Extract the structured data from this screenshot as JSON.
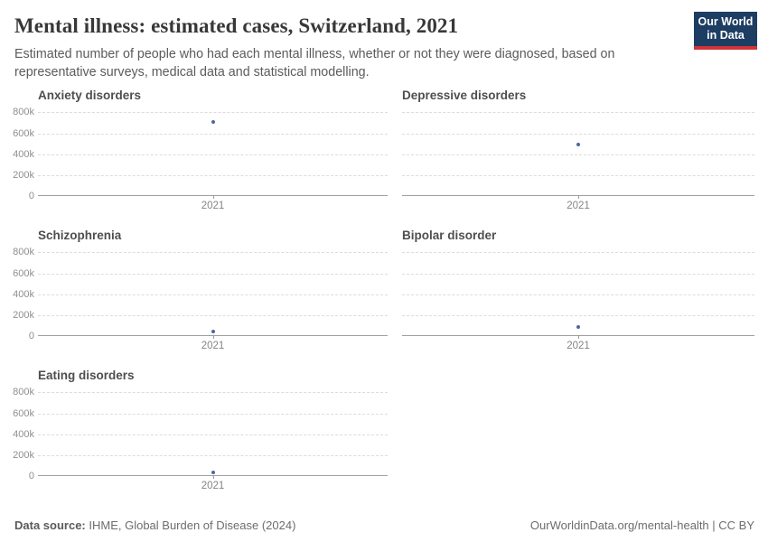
{
  "header": {
    "title": "Mental illness: estimated cases, Switzerland, 2021",
    "subtitle": "Estimated number of people who had each mental illness, whether or not they were diagnosed, based on representative surveys, medical data and statistical modelling.",
    "logo": {
      "line1": "Our World",
      "line2": "in Data",
      "bg_color": "#1d3d63",
      "accent_color": "#d13438"
    }
  },
  "chart_data": {
    "type": "scatter",
    "entity": "Switzerland",
    "year": 2021,
    "x_tick_label": "2021",
    "ylim": [
      0,
      800000
    ],
    "grid": true,
    "point_color": "#4c6a9c",
    "yticks": [
      {
        "value": 800000,
        "label": "800k"
      },
      {
        "value": 600000,
        "label": "600k"
      },
      {
        "value": 400000,
        "label": "400k"
      },
      {
        "value": 200000,
        "label": "200k"
      },
      {
        "value": 0,
        "label": "0"
      }
    ],
    "panels": [
      {
        "title": "Anxiety disorders",
        "year": 2021,
        "value": 700000,
        "show_y_axis": true
      },
      {
        "title": "Depressive disorders",
        "year": 2021,
        "value": 485000,
        "show_y_axis": false
      },
      {
        "title": "Schizophrenia",
        "year": 2021,
        "value": 35000,
        "show_y_axis": true
      },
      {
        "title": "Bipolar disorder",
        "year": 2021,
        "value": 85000,
        "show_y_axis": false
      },
      {
        "title": "Eating disorders",
        "year": 2021,
        "value": 33000,
        "show_y_axis": true
      }
    ]
  },
  "footer": {
    "source_label": "Data source:",
    "source_text": " IHME, Global Burden of Disease (2024)",
    "credit": "OurWorldinData.org/mental-health | CC BY"
  }
}
